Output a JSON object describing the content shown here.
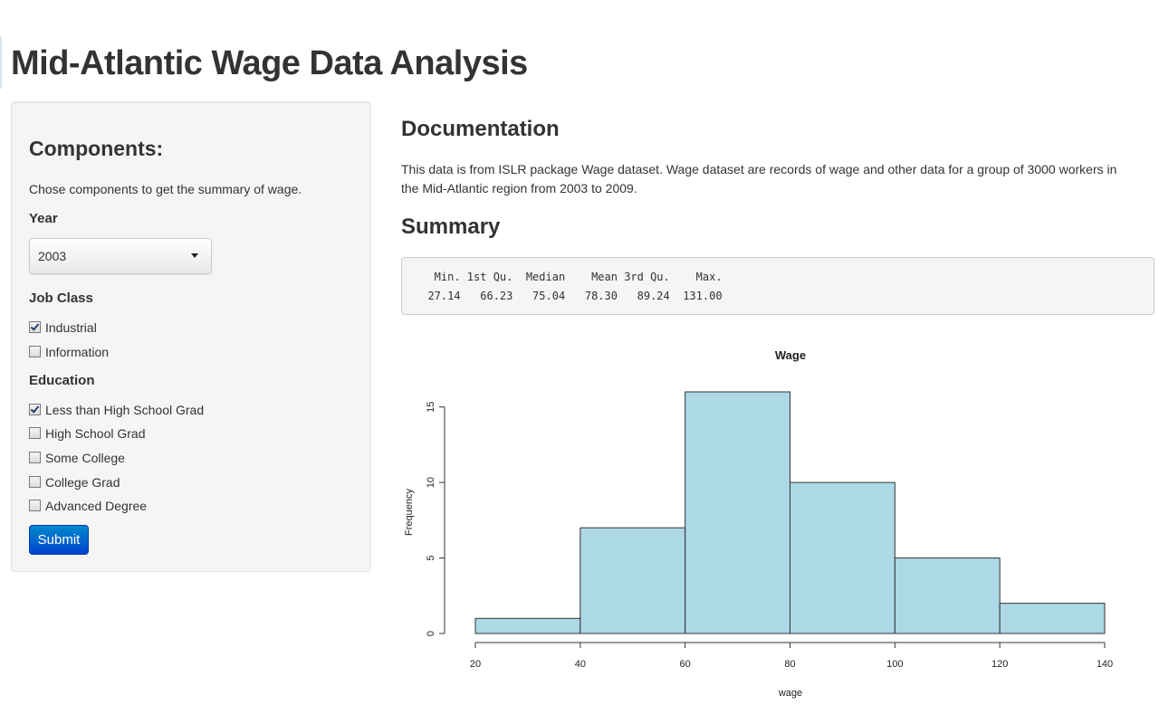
{
  "page": {
    "title": "Mid-Atlantic Wage Data Analysis"
  },
  "sidebar": {
    "heading": "Components:",
    "help_text": "Chose components to get the summary of wage.",
    "year": {
      "label": "Year",
      "selected": "2003"
    },
    "job_class": {
      "label": "Job Class",
      "options": [
        {
          "label": "Industrial",
          "checked": true
        },
        {
          "label": "Information",
          "checked": false
        }
      ]
    },
    "education": {
      "label": "Education",
      "options": [
        {
          "label": "Less than High School Grad",
          "checked": true
        },
        {
          "label": "High School Grad",
          "checked": false
        },
        {
          "label": "Some College",
          "checked": false
        },
        {
          "label": "College Grad",
          "checked": false
        },
        {
          "label": "Advanced Degree",
          "checked": false
        }
      ]
    },
    "submit_label": "Submit"
  },
  "main": {
    "documentation": {
      "heading": "Documentation",
      "text": "This data is from ISLR package Wage dataset. Wage dataset are records of wage and other data for a group of 3000 workers in the Mid-Atlantic region from 2003 to 2009."
    },
    "summary": {
      "heading": "Summary",
      "header_line": "   Min. 1st Qu.  Median    Mean 3rd Qu.    Max.",
      "values_line": "  27.14   66.23   75.04   78.30   89.24  131.00"
    }
  },
  "colors": {
    "bar_fill": "#add8e6",
    "bar_stroke": "#333333",
    "submit_button": "#0062cc"
  },
  "chart_data": {
    "type": "bar",
    "title": "Wage",
    "xlabel": "wage",
    "ylabel": "Frequency",
    "bins": [
      {
        "x0": 20,
        "x1": 40,
        "count": 1
      },
      {
        "x0": 40,
        "x1": 60,
        "count": 7
      },
      {
        "x0": 60,
        "x1": 80,
        "count": 16
      },
      {
        "x0": 80,
        "x1": 100,
        "count": 10
      },
      {
        "x0": 100,
        "x1": 120,
        "count": 5
      },
      {
        "x0": 120,
        "x1": 140,
        "count": 2
      }
    ],
    "xlim": [
      20,
      140
    ],
    "ylim": [
      0,
      16
    ],
    "x_ticks": [
      "20",
      "40",
      "60",
      "80",
      "100",
      "120",
      "140"
    ],
    "y_ticks": [
      "0",
      "5",
      "10",
      "15"
    ],
    "grid": false,
    "legend": "none"
  }
}
